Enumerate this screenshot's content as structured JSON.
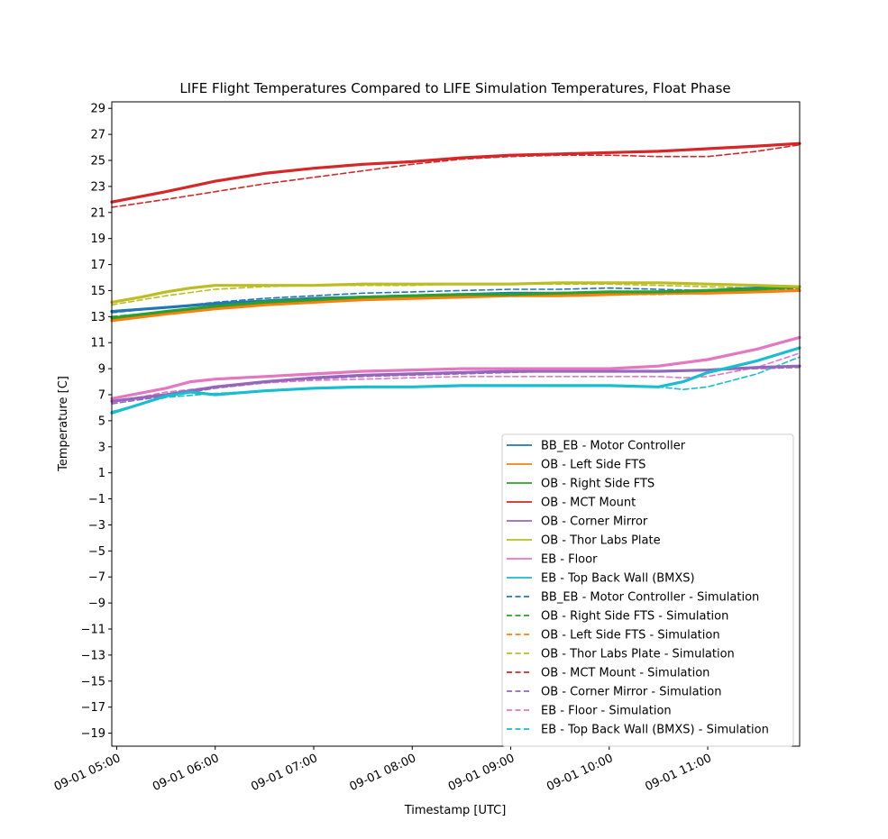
{
  "chart_data": {
    "type": "line",
    "title": "LIFE Flight Temperatures Compared to LIFE Simulation Temperatures, Float Phase",
    "xlabel": "Timestamp [UTC]",
    "ylabel": "Temperature [C]",
    "xlim": [
      "2019-09-01 04:57",
      "2019-09-01 11:56"
    ],
    "ylim": [
      -20,
      29.5
    ],
    "grid": false,
    "legend_position": "lower-right",
    "x_ticks": [
      {
        "t": "2019-09-01 05:00",
        "label": "09-01 05:00"
      },
      {
        "t": "2019-09-01 06:00",
        "label": "09-01 06:00"
      },
      {
        "t": "2019-09-01 07:00",
        "label": "09-01 07:00"
      },
      {
        "t": "2019-09-01 08:00",
        "label": "09-01 08:00"
      },
      {
        "t": "2019-09-01 09:00",
        "label": "09-01 09:00"
      },
      {
        "t": "2019-09-01 10:00",
        "label": "09-01 10:00"
      },
      {
        "t": "2019-09-01 11:00",
        "label": "09-01 11:00"
      }
    ],
    "y_ticks": [
      29,
      27,
      25,
      23,
      21,
      19,
      17,
      15,
      13,
      11,
      9,
      7,
      5,
      3,
      1,
      -1,
      -3,
      -5,
      -7,
      -9,
      -11,
      -13,
      -15,
      -17,
      -19
    ],
    "series": [
      {
        "name": "BB_EB - Motor Controller",
        "color": "#1f77b4",
        "dash": false,
        "x": [
          "2019-09-01 04:57",
          "2019-09-01 05:30",
          "2019-09-01 06:00",
          "2019-09-01 06:30",
          "2019-09-01 07:00",
          "2019-09-01 07:30",
          "2019-09-01 08:00",
          "2019-09-01 08:30",
          "2019-09-01 09:00",
          "2019-09-01 09:30",
          "2019-09-01 10:00",
          "2019-09-01 10:30",
          "2019-09-01 11:00",
          "2019-09-01 11:30",
          "2019-09-01 11:56"
        ],
        "y": [
          13.4,
          13.7,
          14.0,
          14.2,
          14.4,
          14.5,
          14.6,
          14.7,
          14.8,
          14.8,
          14.8,
          14.9,
          15.0,
          15.2,
          15.3
        ]
      },
      {
        "name": "OB - Left Side FTS",
        "color": "#ff7f0e",
        "dash": false,
        "x": [
          "2019-09-01 04:57",
          "2019-09-01 05:30",
          "2019-09-01 06:00",
          "2019-09-01 06:30",
          "2019-09-01 07:00",
          "2019-09-01 07:30",
          "2019-09-01 08:00",
          "2019-09-01 08:30",
          "2019-09-01 09:00",
          "2019-09-01 09:30",
          "2019-09-01 10:00",
          "2019-09-01 10:30",
          "2019-09-01 11:00",
          "2019-09-01 11:30",
          "2019-09-01 11:56"
        ],
        "y": [
          12.7,
          13.2,
          13.6,
          13.9,
          14.1,
          14.3,
          14.4,
          14.5,
          14.6,
          14.6,
          14.7,
          14.8,
          14.8,
          14.9,
          15.0
        ]
      },
      {
        "name": "OB - Right Side FTS",
        "color": "#2ca02c",
        "dash": false,
        "x": [
          "2019-09-01 04:57",
          "2019-09-01 05:30",
          "2019-09-01 06:00",
          "2019-09-01 06:30",
          "2019-09-01 07:00",
          "2019-09-01 07:30",
          "2019-09-01 08:00",
          "2019-09-01 08:30",
          "2019-09-01 09:00",
          "2019-09-01 09:30",
          "2019-09-01 10:00",
          "2019-09-01 10:30",
          "2019-09-01 11:00",
          "2019-09-01 11:30",
          "2019-09-01 11:56"
        ],
        "y": [
          12.9,
          13.4,
          13.8,
          14.1,
          14.3,
          14.5,
          14.6,
          14.7,
          14.7,
          14.8,
          14.9,
          14.9,
          15.0,
          15.1,
          15.3
        ]
      },
      {
        "name": "OB - MCT Mount",
        "color": "#d62728",
        "dash": false,
        "x": [
          "2019-09-01 04:57",
          "2019-09-01 05:30",
          "2019-09-01 06:00",
          "2019-09-01 06:30",
          "2019-09-01 07:00",
          "2019-09-01 07:30",
          "2019-09-01 08:00",
          "2019-09-01 08:30",
          "2019-09-01 09:00",
          "2019-09-01 09:30",
          "2019-09-01 10:00",
          "2019-09-01 10:30",
          "2019-09-01 11:00",
          "2019-09-01 11:30",
          "2019-09-01 11:56"
        ],
        "y": [
          21.8,
          22.6,
          23.4,
          24.0,
          24.4,
          24.7,
          24.9,
          25.2,
          25.4,
          25.5,
          25.6,
          25.7,
          25.9,
          26.1,
          26.3
        ]
      },
      {
        "name": "OB - Corner Mirror",
        "color": "#9467bd",
        "dash": false,
        "x": [
          "2019-09-01 04:57",
          "2019-09-01 05:30",
          "2019-09-01 06:00",
          "2019-09-01 06:30",
          "2019-09-01 07:00",
          "2019-09-01 07:30",
          "2019-09-01 08:00",
          "2019-09-01 08:30",
          "2019-09-01 09:00",
          "2019-09-01 09:30",
          "2019-09-01 10:00",
          "2019-09-01 10:30",
          "2019-09-01 11:00",
          "2019-09-01 11:30",
          "2019-09-01 11:56"
        ],
        "y": [
          6.5,
          7.0,
          7.6,
          8.0,
          8.3,
          8.5,
          8.6,
          8.7,
          8.8,
          8.8,
          8.8,
          8.8,
          8.9,
          9.1,
          9.2
        ]
      },
      {
        "name": "OB - Thor Labs Plate",
        "color": "#bcbd22",
        "dash": false,
        "x": [
          "2019-09-01 04:57",
          "2019-09-01 05:15",
          "2019-09-01 05:30",
          "2019-09-01 05:45",
          "2019-09-01 06:00",
          "2019-09-01 06:30",
          "2019-09-01 07:00",
          "2019-09-01 07:30",
          "2019-09-01 08:00",
          "2019-09-01 08:30",
          "2019-09-01 09:00",
          "2019-09-01 09:30",
          "2019-09-01 10:00",
          "2019-09-01 10:30",
          "2019-09-01 11:00",
          "2019-09-01 11:30",
          "2019-09-01 11:56"
        ],
        "y": [
          14.1,
          14.5,
          14.9,
          15.2,
          15.4,
          15.4,
          15.4,
          15.5,
          15.5,
          15.5,
          15.5,
          15.6,
          15.6,
          15.6,
          15.5,
          15.4,
          15.3
        ]
      },
      {
        "name": "EB - Floor",
        "color": "#e377c2",
        "dash": false,
        "x": [
          "2019-09-01 04:57",
          "2019-09-01 05:30",
          "2019-09-01 05:45",
          "2019-09-01 06:00",
          "2019-09-01 06:30",
          "2019-09-01 07:00",
          "2019-09-01 07:30",
          "2019-09-01 08:00",
          "2019-09-01 08:30",
          "2019-09-01 09:00",
          "2019-09-01 09:30",
          "2019-09-01 10:00",
          "2019-09-01 10:30",
          "2019-09-01 11:00",
          "2019-09-01 11:30",
          "2019-09-01 11:56"
        ],
        "y": [
          6.7,
          7.5,
          8.0,
          8.2,
          8.4,
          8.6,
          8.8,
          8.9,
          9.0,
          9.0,
          9.0,
          9.0,
          9.2,
          9.7,
          10.5,
          11.4
        ]
      },
      {
        "name": "EB - Top Back Wall (BMXS)",
        "color": "#17becf",
        "dash": false,
        "x": [
          "2019-09-01 04:57",
          "2019-09-01 05:15",
          "2019-09-01 05:30",
          "2019-09-01 05:45",
          "2019-09-01 06:00",
          "2019-09-01 06:30",
          "2019-09-01 07:00",
          "2019-09-01 07:30",
          "2019-09-01 08:00",
          "2019-09-01 08:30",
          "2019-09-01 09:00",
          "2019-09-01 09:30",
          "2019-09-01 10:00",
          "2019-09-01 10:30",
          "2019-09-01 10:45",
          "2019-09-01 11:00",
          "2019-09-01 11:30",
          "2019-09-01 11:56"
        ],
        "y": [
          5.6,
          6.3,
          6.9,
          7.2,
          7.0,
          7.3,
          7.5,
          7.6,
          7.6,
          7.7,
          7.7,
          7.7,
          7.7,
          7.6,
          8.0,
          8.7,
          9.6,
          10.6
        ]
      },
      {
        "name": "BB_EB - Motor Controller - Simulation",
        "color": "#1f77b4",
        "dash": true,
        "x": [
          "2019-09-01 04:57",
          "2019-09-01 05:30",
          "2019-09-01 06:00",
          "2019-09-01 06:30",
          "2019-09-01 07:00",
          "2019-09-01 07:30",
          "2019-09-01 08:00",
          "2019-09-01 08:30",
          "2019-09-01 09:00",
          "2019-09-01 09:30",
          "2019-09-01 10:00",
          "2019-09-01 10:30",
          "2019-09-01 11:00",
          "2019-09-01 11:30",
          "2019-09-01 11:56"
        ],
        "y": [
          13.3,
          13.7,
          14.1,
          14.4,
          14.6,
          14.8,
          14.9,
          15.0,
          15.1,
          15.1,
          15.2,
          15.1,
          15.0,
          15.1,
          15.1
        ]
      },
      {
        "name": "OB - Right Side FTS - Simulation",
        "color": "#2ca02c",
        "dash": true,
        "x": [
          "2019-09-01 04:57",
          "2019-09-01 05:30",
          "2019-09-01 06:00",
          "2019-09-01 06:30",
          "2019-09-01 07:00",
          "2019-09-01 07:30",
          "2019-09-01 08:00",
          "2019-09-01 08:30",
          "2019-09-01 09:00",
          "2019-09-01 09:30",
          "2019-09-01 10:00",
          "2019-09-01 10:30",
          "2019-09-01 11:00",
          "2019-09-01 11:30",
          "2019-09-01 11:56"
        ],
        "y": [
          13.0,
          13.4,
          13.8,
          14.1,
          14.3,
          14.5,
          14.6,
          14.7,
          14.8,
          14.8,
          14.9,
          14.9,
          15.0,
          15.1,
          15.2
        ]
      },
      {
        "name": "OB - Left Side FTS - Simulation",
        "color": "#ff7f0e",
        "dash": true,
        "x": [
          "2019-09-01 04:57",
          "2019-09-01 05:30",
          "2019-09-01 06:00",
          "2019-09-01 06:30",
          "2019-09-01 07:00",
          "2019-09-01 07:30",
          "2019-09-01 08:00",
          "2019-09-01 08:30",
          "2019-09-01 09:00",
          "2019-09-01 09:30",
          "2019-09-01 10:00",
          "2019-09-01 10:30",
          "2019-09-01 11:00",
          "2019-09-01 11:30",
          "2019-09-01 11:56"
        ],
        "y": [
          12.8,
          13.3,
          13.7,
          14.0,
          14.2,
          14.4,
          14.5,
          14.6,
          14.7,
          14.7,
          14.7,
          14.7,
          14.8,
          14.9,
          15.0
        ]
      },
      {
        "name": "OB - Thor Labs Plate - Simulation",
        "color": "#bcbd22",
        "dash": true,
        "x": [
          "2019-09-01 04:57",
          "2019-09-01 05:30",
          "2019-09-01 06:00",
          "2019-09-01 06:30",
          "2019-09-01 07:00",
          "2019-09-01 07:30",
          "2019-09-01 08:00",
          "2019-09-01 08:30",
          "2019-09-01 09:00",
          "2019-09-01 09:30",
          "2019-09-01 10:00",
          "2019-09-01 10:30",
          "2019-09-01 11:00",
          "2019-09-01 11:30",
          "2019-09-01 11:56"
        ],
        "y": [
          13.9,
          14.6,
          15.1,
          15.3,
          15.4,
          15.4,
          15.4,
          15.5,
          15.5,
          15.5,
          15.5,
          15.4,
          15.3,
          15.2,
          15.2
        ]
      },
      {
        "name": "OB - MCT Mount - Simulation",
        "color": "#d62728",
        "dash": true,
        "x": [
          "2019-09-01 04:57",
          "2019-09-01 05:30",
          "2019-09-01 06:00",
          "2019-09-01 06:30",
          "2019-09-01 07:00",
          "2019-09-01 07:30",
          "2019-09-01 08:00",
          "2019-09-01 08:30",
          "2019-09-01 09:00",
          "2019-09-01 09:30",
          "2019-09-01 10:00",
          "2019-09-01 10:30",
          "2019-09-01 11:00",
          "2019-09-01 11:30",
          "2019-09-01 11:56"
        ],
        "y": [
          21.4,
          22.0,
          22.6,
          23.2,
          23.7,
          24.2,
          24.7,
          25.1,
          25.3,
          25.4,
          25.4,
          25.3,
          25.3,
          25.7,
          26.2
        ]
      },
      {
        "name": "OB - Corner Mirror - Simulation",
        "color": "#9467bd",
        "dash": true,
        "x": [
          "2019-09-01 04:57",
          "2019-09-01 05:30",
          "2019-09-01 06:00",
          "2019-09-01 06:30",
          "2019-09-01 07:00",
          "2019-09-01 07:30",
          "2019-09-01 08:00",
          "2019-09-01 08:30",
          "2019-09-01 09:00",
          "2019-09-01 09:30",
          "2019-09-01 10:00",
          "2019-09-01 10:30",
          "2019-09-01 11:00",
          "2019-09-01 11:30",
          "2019-09-01 11:56"
        ],
        "y": [
          6.3,
          6.9,
          7.5,
          7.9,
          8.2,
          8.4,
          8.5,
          8.6,
          8.7,
          8.8,
          8.8,
          8.8,
          8.9,
          9.0,
          9.1
        ]
      },
      {
        "name": "EB - Floor - Simulation",
        "color": "#e377c2",
        "dash": true,
        "x": [
          "2019-09-01 04:57",
          "2019-09-01 05:30",
          "2019-09-01 06:00",
          "2019-09-01 06:30",
          "2019-09-01 07:00",
          "2019-09-01 07:30",
          "2019-09-01 08:00",
          "2019-09-01 08:30",
          "2019-09-01 09:00",
          "2019-09-01 09:30",
          "2019-09-01 10:00",
          "2019-09-01 10:30",
          "2019-09-01 10:45",
          "2019-09-01 11:00",
          "2019-09-01 11:30",
          "2019-09-01 11:56"
        ],
        "y": [
          6.4,
          7.2,
          7.6,
          7.9,
          8.1,
          8.2,
          8.3,
          8.4,
          8.4,
          8.4,
          8.4,
          8.4,
          8.3,
          8.4,
          9.1,
          10.2
        ]
      },
      {
        "name": "EB - Top Back Wall (BMXS) - Simulation",
        "color": "#17becf",
        "dash": true,
        "x": [
          "2019-09-01 04:57",
          "2019-09-01 05:30",
          "2019-09-01 06:00",
          "2019-09-01 06:30",
          "2019-09-01 07:00",
          "2019-09-01 07:30",
          "2019-09-01 08:00",
          "2019-09-01 08:30",
          "2019-09-01 09:00",
          "2019-09-01 09:30",
          "2019-09-01 10:00",
          "2019-09-01 10:30",
          "2019-09-01 10:45",
          "2019-09-01 11:00",
          "2019-09-01 11:30",
          "2019-09-01 11:56"
        ],
        "y": [
          5.7,
          6.8,
          7.1,
          7.3,
          7.5,
          7.6,
          7.6,
          7.7,
          7.7,
          7.7,
          7.7,
          7.6,
          7.4,
          7.6,
          8.6,
          9.9
        ]
      }
    ]
  }
}
